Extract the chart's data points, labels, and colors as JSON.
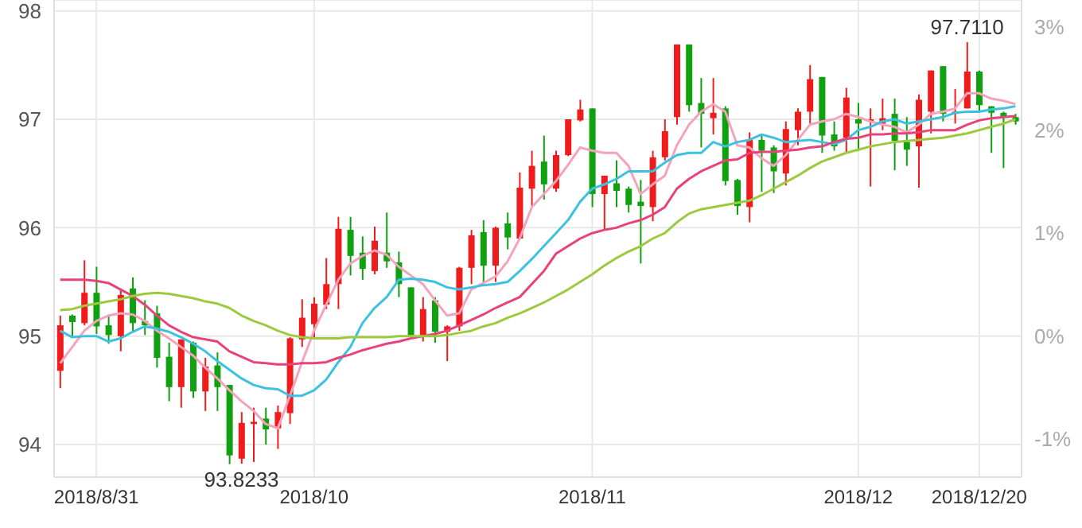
{
  "chart_data": {
    "type": "candlestick",
    "categories": [
      null,
      null,
      null,
      "2018/8/31",
      null,
      null,
      null,
      null,
      null,
      null,
      null,
      null,
      null,
      null,
      null,
      null,
      null,
      null,
      null,
      null,
      null,
      "2018/10",
      null,
      null,
      null,
      null,
      null,
      null,
      null,
      null,
      null,
      null,
      null,
      null,
      null,
      null,
      null,
      null,
      null,
      null,
      null,
      null,
      null,
      null,
      "2018/11",
      null,
      null,
      null,
      null,
      null,
      null,
      null,
      null,
      null,
      null,
      null,
      null,
      null,
      null,
      null,
      null,
      null,
      null,
      null,
      null,
      null,
      "2018/12",
      null,
      null,
      null,
      null,
      null,
      null,
      null,
      null,
      null,
      "2018/12/20",
      null,
      null,
      null
    ],
    "ohlc": [
      [
        94.68,
        95.19,
        94.52,
        95.1
      ],
      [
        95.19,
        95.2,
        95.0,
        95.13
      ],
      [
        95.12,
        95.7,
        95.1,
        95.4
      ],
      [
        95.4,
        95.64,
        95.02,
        95.09
      ],
      [
        95.1,
        95.19,
        94.93,
        95.01
      ],
      [
        95.0,
        95.43,
        94.86,
        95.38
      ],
      [
        95.44,
        95.54,
        95.04,
        95.12
      ],
      [
        95.14,
        95.33,
        95.01,
        95.1
      ],
      [
        95.21,
        95.28,
        94.71,
        94.8
      ],
      [
        94.81,
        94.94,
        94.4,
        94.53
      ],
      [
        94.53,
        94.97,
        94.34,
        94.97
      ],
      [
        94.94,
        94.95,
        94.43,
        94.49
      ],
      [
        94.49,
        94.8,
        94.31,
        94.72
      ],
      [
        94.73,
        94.85,
        94.31,
        94.53
      ],
      [
        94.55,
        94.55,
        93.82,
        93.9
      ],
      [
        93.87,
        94.3,
        93.8233,
        94.2
      ],
      [
        94.19,
        94.34,
        93.84,
        94.21
      ],
      [
        94.24,
        94.34,
        94.0,
        94.14
      ],
      [
        94.15,
        94.36,
        93.96,
        94.3
      ],
      [
        94.29,
        94.99,
        94.19,
        94.98
      ],
      [
        94.97,
        95.34,
        94.9,
        95.17
      ],
      [
        95.11,
        95.36,
        94.99,
        95.3
      ],
      [
        95.29,
        95.72,
        95.25,
        95.48
      ],
      [
        95.48,
        96.1,
        95.25,
        95.99
      ],
      [
        95.98,
        96.1,
        95.56,
        95.74
      ],
      [
        95.77,
        95.92,
        95.52,
        95.62
      ],
      [
        95.6,
        96.01,
        95.57,
        95.88
      ],
      [
        95.77,
        96.14,
        95.63,
        95.69
      ],
      [
        95.68,
        95.78,
        95.36,
        95.48
      ],
      [
        95.45,
        95.45,
        95.0,
        95.01
      ],
      [
        95.01,
        95.36,
        94.95,
        95.25
      ],
      [
        95.33,
        95.36,
        94.94,
        95.04
      ],
      [
        95.04,
        95.1,
        94.77,
        95.09
      ],
      [
        95.09,
        95.64,
        95.05,
        95.63
      ],
      [
        95.63,
        95.98,
        95.48,
        95.93
      ],
      [
        95.96,
        96.07,
        95.48,
        95.65
      ],
      [
        95.65,
        96.01,
        95.5,
        96.0
      ],
      [
        96.04,
        96.14,
        95.8,
        95.91
      ],
      [
        95.9,
        96.51,
        95.9,
        96.37
      ],
      [
        96.36,
        96.71,
        96.2,
        96.57
      ],
      [
        96.61,
        96.85,
        96.26,
        96.4
      ],
      [
        96.36,
        96.71,
        96.33,
        96.67
      ],
      [
        96.67,
        97.0,
        96.66,
        97.0
      ],
      [
        96.99,
        97.18,
        96.98,
        97.09
      ],
      [
        97.1,
        97.1,
        96.19,
        96.31
      ],
      [
        96.31,
        96.48,
        95.98,
        96.48
      ],
      [
        96.41,
        96.62,
        96.19,
        96.34
      ],
      [
        96.36,
        96.38,
        96.14,
        96.21
      ],
      [
        96.24,
        96.44,
        95.67,
        96.2
      ],
      [
        96.19,
        96.71,
        96.06,
        96.65
      ],
      [
        96.65,
        97.0,
        96.62,
        96.89
      ],
      [
        97.02,
        97.69,
        96.95,
        97.69
      ],
      [
        97.69,
        97.69,
        97.07,
        97.13
      ],
      [
        97.15,
        97.38,
        96.74,
        97.05
      ],
      [
        97.01,
        97.38,
        96.86,
        97.06
      ],
      [
        97.1,
        97.12,
        96.39,
        96.43
      ],
      [
        96.44,
        96.45,
        96.12,
        96.2
      ],
      [
        96.19,
        96.88,
        96.05,
        96.81
      ],
      [
        96.81,
        96.86,
        96.33,
        96.71
      ],
      [
        96.74,
        96.76,
        96.32,
        96.52
      ],
      [
        96.5,
        96.98,
        96.39,
        96.91
      ],
      [
        96.9,
        97.1,
        96.76,
        97.07
      ],
      [
        97.07,
        97.5,
        96.96,
        97.37
      ],
      [
        97.39,
        97.39,
        96.69,
        96.85
      ],
      [
        96.86,
        96.98,
        96.71,
        96.75
      ],
      [
        96.83,
        97.29,
        96.69,
        97.2
      ],
      [
        97.0,
        97.15,
        96.71,
        96.96
      ],
      [
        96.98,
        97.1,
        96.38,
        97.0
      ],
      [
        96.96,
        97.19,
        96.9,
        97.01
      ],
      [
        97.05,
        97.19,
        96.53,
        96.8
      ],
      [
        96.79,
        97.02,
        96.57,
        96.72
      ],
      [
        96.75,
        97.23,
        96.37,
        97.18
      ],
      [
        97.07,
        97.45,
        96.87,
        97.45
      ],
      [
        97.49,
        97.49,
        96.98,
        97.05
      ],
      [
        97.05,
        97.28,
        96.96,
        97.07
      ],
      [
        97.1,
        97.711,
        97.1,
        97.44
      ],
      [
        97.44,
        97.45,
        97.07,
        97.13
      ],
      [
        97.12,
        97.12,
        96.69,
        97.06
      ],
      [
        97.06,
        97.07,
        96.55,
        97.02
      ],
      [
        97.02,
        97.05,
        96.95,
        96.98
      ]
    ],
    "colors": [
      "#f01c1c",
      "#0fa10f",
      "#f01c1c",
      "#0fa10f",
      "#0fa10f",
      "#f01c1c",
      "#0fa10f",
      "#0fa10f",
      "#0fa10f",
      "#0fa10f",
      "#f01c1c",
      "#0fa10f",
      "#f01c1c",
      "#0fa10f",
      "#0fa10f",
      "#f01c1c",
      "#f01c1c",
      "#0fa10f",
      "#f01c1c",
      "#f01c1c",
      "#f01c1c",
      "#f01c1c",
      "#f01c1c",
      "#f01c1c",
      "#0fa10f",
      "#0fa10f",
      "#f01c1c",
      "#0fa10f",
      "#0fa10f",
      "#0fa10f",
      "#f01c1c",
      "#0fa10f",
      "#f01c1c",
      "#f01c1c",
      "#f01c1c",
      "#0fa10f",
      "#f01c1c",
      "#0fa10f",
      "#f01c1c",
      "#f01c1c",
      "#0fa10f",
      "#f01c1c",
      "#f01c1c",
      "#f01c1c",
      "#0fa10f",
      "#f01c1c",
      "#0fa10f",
      "#0fa10f",
      "#0fa10f",
      "#f01c1c",
      "#f01c1c",
      "#f01c1c",
      "#0fa10f",
      "#0fa10f",
      "#f01c1c",
      "#0fa10f",
      "#0fa10f",
      "#f01c1c",
      "#0fa10f",
      "#0fa10f",
      "#f01c1c",
      "#f01c1c",
      "#f01c1c",
      "#0fa10f",
      "#0fa10f",
      "#f01c1c",
      "#0fa10f",
      "#f01c1c",
      "#f01c1c",
      "#0fa10f",
      "#0fa10f",
      "#f01c1c",
      "#f01c1c",
      "#0fa10f",
      "#f01c1c",
      "#f01c1c",
      "#0fa10f",
      "#0fa10f",
      "#0fa10f",
      "#0fa10f"
    ],
    "series": [
      {
        "type": "line",
        "color": "#f5a3bd",
        "values": [
          94.75,
          94.9,
          95.05,
          95.14,
          95.19,
          95.21,
          95.2,
          95.14,
          95.05,
          94.98,
          94.9,
          94.82,
          94.71,
          94.61,
          94.5,
          94.4,
          94.31,
          94.19,
          94.15,
          94.45,
          94.76,
          95.05,
          95.29,
          95.52,
          95.67,
          95.74,
          95.79,
          95.75,
          95.64,
          95.56,
          95.48,
          95.33,
          95.19,
          95.21,
          95.43,
          95.49,
          95.55,
          95.69,
          95.9,
          96.19,
          96.31,
          96.43,
          96.58,
          96.74,
          96.71,
          96.69,
          96.69,
          96.57,
          96.31,
          96.4,
          96.48,
          96.76,
          96.95,
          97.07,
          97.14,
          97.07,
          96.76,
          96.74,
          96.64,
          96.57,
          96.67,
          96.81,
          96.95,
          96.98,
          97.0,
          97.05,
          97.02,
          96.98,
          96.95,
          96.93,
          96.88,
          96.95,
          97.05,
          97.07,
          97.1,
          97.24,
          97.24,
          97.19,
          97.17,
          97.14
        ]
      },
      {
        "type": "line",
        "color": "#3cc2e0",
        "values": [
          95.05,
          94.99,
          95.0,
          95.0,
          94.95,
          94.98,
          95.04,
          95.09,
          95.07,
          95.04,
          94.99,
          94.93,
          94.86,
          94.77,
          94.69,
          94.61,
          94.55,
          94.52,
          94.51,
          94.45,
          94.45,
          94.5,
          94.6,
          94.76,
          94.9,
          95.12,
          95.26,
          95.36,
          95.52,
          95.53,
          95.52,
          95.5,
          95.45,
          95.43,
          95.45,
          95.47,
          95.48,
          95.5,
          95.6,
          95.71,
          95.83,
          95.95,
          96.07,
          96.24,
          96.36,
          96.4,
          96.45,
          96.52,
          96.52,
          96.52,
          96.6,
          96.67,
          96.69,
          96.69,
          96.79,
          96.75,
          96.79,
          96.81,
          96.86,
          96.83,
          96.79,
          96.8,
          96.81,
          96.79,
          96.77,
          96.81,
          96.9,
          96.93,
          96.98,
          97.0,
          96.96,
          96.98,
          97.0,
          97.02,
          97.06,
          97.07,
          97.07,
          97.09,
          97.1,
          97.12
        ]
      },
      {
        "type": "line",
        "color": "#e8417c",
        "values": [
          95.52,
          95.52,
          95.52,
          95.51,
          95.49,
          95.43,
          95.37,
          95.29,
          95.19,
          95.1,
          95.04,
          94.99,
          94.97,
          94.95,
          94.86,
          94.81,
          94.76,
          94.75,
          94.74,
          94.74,
          94.75,
          94.75,
          94.76,
          94.8,
          94.83,
          94.87,
          94.9,
          94.93,
          94.95,
          94.98,
          95.0,
          95.02,
          95.05,
          95.1,
          95.15,
          95.2,
          95.26,
          95.31,
          95.36,
          95.48,
          95.6,
          95.76,
          95.83,
          95.9,
          95.95,
          95.98,
          96.0,
          96.04,
          96.07,
          96.12,
          96.19,
          96.36,
          96.45,
          96.52,
          96.57,
          96.62,
          96.63,
          96.69,
          96.7,
          96.7,
          96.71,
          96.72,
          96.74,
          96.75,
          96.79,
          96.82,
          96.83,
          96.86,
          96.86,
          96.87,
          96.87,
          96.88,
          96.9,
          96.9,
          96.9,
          96.95,
          96.99,
          97.01,
          97.02,
          97.03
        ]
      },
      {
        "type": "line",
        "color": "#9dc93e",
        "values": [
          95.24,
          95.25,
          95.28,
          95.3,
          95.32,
          95.34,
          95.37,
          95.39,
          95.4,
          95.39,
          95.37,
          95.35,
          95.32,
          95.3,
          95.26,
          95.19,
          95.14,
          95.1,
          95.05,
          95.01,
          94.99,
          94.98,
          94.98,
          94.98,
          94.99,
          94.99,
          94.99,
          94.99,
          95.0,
          95.0,
          95.0,
          95.0,
          95.01,
          95.03,
          95.05,
          95.09,
          95.12,
          95.17,
          95.21,
          95.26,
          95.31,
          95.37,
          95.43,
          95.5,
          95.57,
          95.65,
          95.72,
          95.78,
          95.83,
          95.9,
          95.95,
          96.05,
          96.13,
          96.17,
          96.19,
          96.21,
          96.23,
          96.25,
          96.3,
          96.36,
          96.42,
          96.48,
          96.55,
          96.61,
          96.65,
          96.69,
          96.72,
          96.75,
          96.77,
          96.79,
          96.8,
          96.81,
          96.82,
          96.83,
          96.85,
          96.87,
          96.9,
          96.93,
          96.96,
          97.0
        ]
      }
    ],
    "ylim": [
      93.7,
      98.1
    ],
    "yticks": [
      94,
      95,
      96,
      97,
      98
    ],
    "y2lim": [
      -1.37,
      3.26
    ],
    "y2ticks": [
      {
        "value": -1,
        "label": "-1%"
      },
      {
        "value": 0,
        "label": "0%"
      },
      {
        "value": 1,
        "label": "1%"
      },
      {
        "value": 2,
        "label": "2%"
      },
      {
        "value": 3,
        "label": "3%"
      }
    ],
    "grid": true,
    "annotations": [
      {
        "text": "93.8233",
        "y": 93.8233
      },
      {
        "text": "97.7110",
        "y": 97.711
      }
    ]
  }
}
